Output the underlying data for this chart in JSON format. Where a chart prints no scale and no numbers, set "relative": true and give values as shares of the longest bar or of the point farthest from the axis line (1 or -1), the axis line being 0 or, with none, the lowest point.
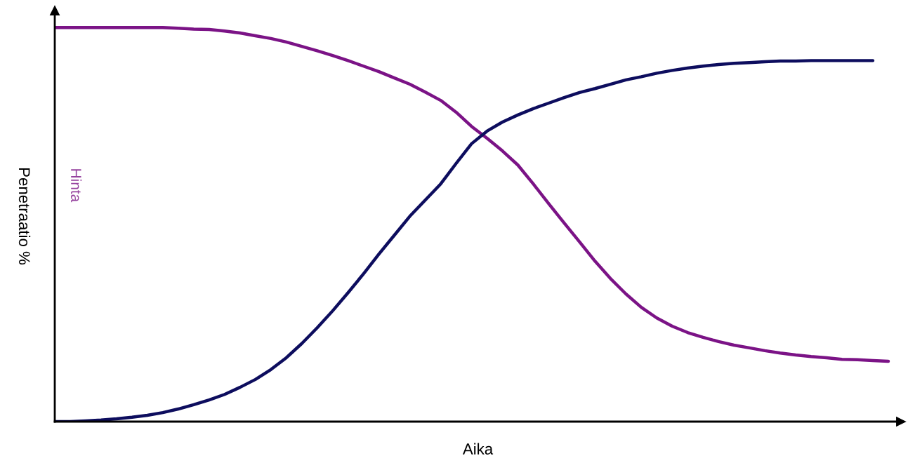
{
  "chart_data": {
    "type": "line",
    "relative": true,
    "xlabel": "Aika",
    "ylabel": "Penetraatio %",
    "categories": [
      null,
      null,
      null,
      null,
      null,
      null,
      null,
      null,
      null,
      null,
      null,
      null,
      null,
      null,
      null,
      null,
      null,
      null,
      null,
      null,
      null,
      null,
      null,
      null,
      null,
      null,
      null,
      null,
      null,
      null,
      null,
      null,
      null,
      null,
      null,
      null,
      null,
      null,
      null,
      null,
      null,
      null,
      null,
      null,
      null,
      null,
      null,
      null,
      null,
      null,
      null,
      null,
      null,
      null,
      null
    ],
    "series": [
      {
        "name": "Hinta",
        "color": "#7b1386",
        "values": [
          1.0,
          1.0,
          1.0,
          1.0,
          1.0,
          1.0,
          1.0,
          1.0,
          0.998,
          0.996,
          0.995,
          0.991,
          0.986,
          0.979,
          0.972,
          0.963,
          0.952,
          0.941,
          0.929,
          0.916,
          0.902,
          0.888,
          0.872,
          0.856,
          0.836,
          0.815,
          0.785,
          0.749,
          0.719,
          0.687,
          0.651,
          0.603,
          0.553,
          0.504,
          0.456,
          0.407,
          0.363,
          0.324,
          0.29,
          0.263,
          0.242,
          0.226,
          0.214,
          0.203,
          0.194,
          0.187,
          0.18,
          0.174,
          0.169,
          0.165,
          0.162,
          0.158,
          0.157,
          0.155,
          0.153
        ]
      },
      {
        "color": "#0d0d5e",
        "values": [
          0,
          0,
          0.002,
          0.004,
          0.007,
          0.011,
          0.016,
          0.023,
          0.032,
          0.043,
          0.055,
          0.069,
          0.087,
          0.107,
          0.132,
          0.162,
          0.198,
          0.238,
          0.281,
          0.327,
          0.375,
          0.425,
          0.473,
          0.521,
          0.562,
          0.603,
          0.655,
          0.705,
          0.737,
          0.76,
          0.778,
          0.794,
          0.808,
          0.822,
          0.835,
          0.845,
          0.856,
          0.867,
          0.875,
          0.884,
          0.891,
          0.897,
          0.902,
          0.906,
          0.909,
          0.911,
          0.913,
          0.915,
          0.915,
          0.916,
          0.916,
          0.916,
          0.916,
          0.916,
          null
        ]
      }
    ]
  }
}
